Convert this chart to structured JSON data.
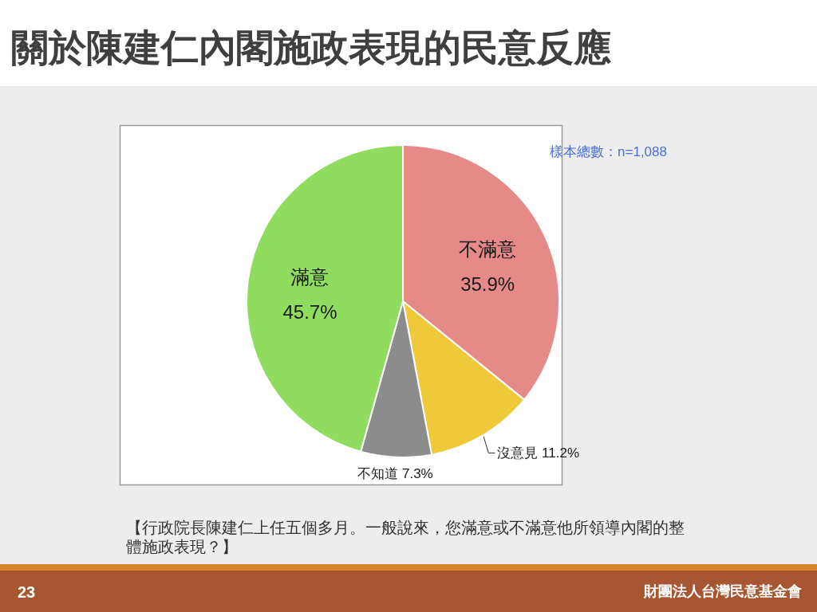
{
  "chart_data": {
    "type": "pie",
    "title": "關於陳建仁內閣施政表現的民意反應",
    "categories": [
      "不滿意",
      "沒意見",
      "不知道",
      "滿意"
    ],
    "values": [
      35.9,
      11.2,
      7.3,
      45.7
    ],
    "colors": [
      "#e58a87",
      "#f0c93a",
      "#8c8c8c",
      "#8fdc5f"
    ],
    "value_labels": [
      "35.9%",
      "11.2%",
      "7.3%",
      "45.7%"
    ],
    "annotations": [
      "樣本總數：n=1,088",
      "【行政院長陳建仁上任五個多月。一般說來，您滿意或不滿意他所領導內閣的整體施政表現？】",
      "財團法人台灣民意基金會",
      "23"
    ]
  }
}
